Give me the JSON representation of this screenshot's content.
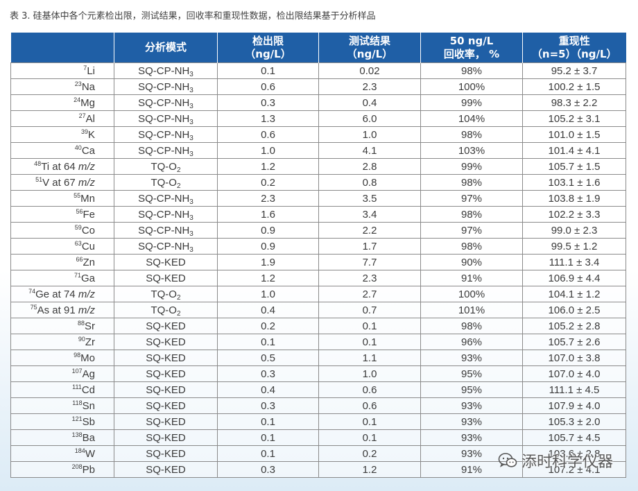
{
  "caption": "表 3. 硅基体中各个元素检出限，测试结果，回收率和重现性数据，检出限结果基于分析样品",
  "headers": {
    "element": "",
    "mode": "分析模式",
    "dl_line1": "检出限",
    "dl_line2": "（ng/L）",
    "result_line1": "测试结果",
    "result_line2": "（ng/L）",
    "recovery_line1": "50 ng/L",
    "recovery_line2": "回收率， %",
    "repro_line1": "重现性",
    "repro_line2": "（n=5）（ng/L）"
  },
  "rows": [
    {
      "mass": "7",
      "symbol": "Li",
      "suffix": "",
      "mode_base": "SQ-CP-NH",
      "mode_sub": "3",
      "dl": "0.1",
      "result": "0.02",
      "recovery": "98%",
      "repro": "95.2 ± 3.7"
    },
    {
      "mass": "23",
      "symbol": "Na",
      "suffix": "",
      "mode_base": "SQ-CP-NH",
      "mode_sub": "3",
      "dl": "0.6",
      "result": "2.3",
      "recovery": "100%",
      "repro": "100.2 ± 1.5"
    },
    {
      "mass": "24",
      "symbol": "Mg",
      "suffix": "",
      "mode_base": "SQ-CP-NH",
      "mode_sub": "3",
      "dl": "0.3",
      "result": "0.4",
      "recovery": "99%",
      "repro": "98.3 ± 2.2"
    },
    {
      "mass": "27",
      "symbol": "Al",
      "suffix": "",
      "mode_base": "SQ-CP-NH",
      "mode_sub": "3",
      "dl": "1.3",
      "result": "6.0",
      "recovery": "104%",
      "repro": "105.2 ± 3.1"
    },
    {
      "mass": "39",
      "symbol": "K",
      "suffix": "",
      "mode_base": "SQ-CP-NH",
      "mode_sub": "3",
      "dl": "0.6",
      "result": "1.0",
      "recovery": "98%",
      "repro": "101.0 ± 1.5"
    },
    {
      "mass": "40",
      "symbol": "Ca",
      "suffix": "",
      "mode_base": "SQ-CP-NH",
      "mode_sub": "3",
      "dl": "1.0",
      "result": "4.1",
      "recovery": "103%",
      "repro": "101.4 ± 4.1"
    },
    {
      "mass": "48",
      "symbol": "Ti at 64 ",
      "suffix": "m/z",
      "mode_base": "TQ-O",
      "mode_sub": "2",
      "dl": "1.2",
      "result": "2.8",
      "recovery": "99%",
      "repro": "105.7 ± 1.5"
    },
    {
      "mass": "51",
      "symbol": "V at 67 ",
      "suffix": "m/z",
      "mode_base": "TQ-O",
      "mode_sub": "2",
      "dl": "0.2",
      "result": "0.8",
      "recovery": "98%",
      "repro": "103.1 ± 1.6"
    },
    {
      "mass": "55",
      "symbol": "Mn",
      "suffix": "",
      "mode_base": "SQ-CP-NH",
      "mode_sub": "3",
      "dl": "2.3",
      "result": "3.5",
      "recovery": "97%",
      "repro": "103.8 ± 1.9"
    },
    {
      "mass": "56",
      "symbol": "Fe",
      "suffix": "",
      "mode_base": "SQ-CP-NH",
      "mode_sub": "3",
      "dl": "1.6",
      "result": "3.4",
      "recovery": "98%",
      "repro": "102.2 ± 3.3"
    },
    {
      "mass": "59",
      "symbol": "Co",
      "suffix": "",
      "mode_base": "SQ-CP-NH",
      "mode_sub": "3",
      "dl": "0.9",
      "result": "2.2",
      "recovery": "97%",
      "repro": "99.0 ± 2.3"
    },
    {
      "mass": "63",
      "symbol": "Cu",
      "suffix": "",
      "mode_base": "SQ-CP-NH",
      "mode_sub": "3",
      "dl": "0.9",
      "result": "1.7",
      "recovery": "98%",
      "repro": "99.5 ± 1.2"
    },
    {
      "mass": "66",
      "symbol": "Zn",
      "suffix": "",
      "mode_base": "SQ-KED",
      "mode_sub": "",
      "dl": "1.9",
      "result": "7.7",
      "recovery": "90%",
      "repro": "111.1 ± 3.4"
    },
    {
      "mass": "71",
      "symbol": "Ga",
      "suffix": "",
      "mode_base": "SQ-KED",
      "mode_sub": "",
      "dl": "1.2",
      "result": "2.3",
      "recovery": "91%",
      "repro": "106.9 ± 4.4"
    },
    {
      "mass": "74",
      "symbol": "Ge at 74 ",
      "suffix": "m/z",
      "mode_base": "TQ-O",
      "mode_sub": "2",
      "dl": "1.0",
      "result": "2.7",
      "recovery": "100%",
      "repro": "104.1 ± 1.2"
    },
    {
      "mass": "75",
      "symbol": "As at 91 ",
      "suffix": "m/z",
      "mode_base": "TQ-O",
      "mode_sub": "2",
      "dl": "0.4",
      "result": "0.7",
      "recovery": "101%",
      "repro": "106.0 ± 2.5"
    },
    {
      "mass": "88",
      "symbol": "Sr",
      "suffix": "",
      "mode_base": "SQ-KED",
      "mode_sub": "",
      "dl": "0.2",
      "result": "0.1",
      "recovery": "98%",
      "repro": "105.2 ± 2.8"
    },
    {
      "mass": "90",
      "symbol": "Zr",
      "suffix": "",
      "mode_base": "SQ-KED",
      "mode_sub": "",
      "dl": "0.1",
      "result": "0.1",
      "recovery": "96%",
      "repro": "105.7 ± 2.6"
    },
    {
      "mass": "98",
      "symbol": "Mo",
      "suffix": "",
      "mode_base": "SQ-KED",
      "mode_sub": "",
      "dl": "0.5",
      "result": "1.1",
      "recovery": "93%",
      "repro": "107.0 ± 3.8"
    },
    {
      "mass": "107",
      "symbol": "Ag",
      "suffix": "",
      "mode_base": "SQ-KED",
      "mode_sub": "",
      "dl": "0.3",
      "result": "1.0",
      "recovery": "95%",
      "repro": "107.0 ± 4.0"
    },
    {
      "mass": "111",
      "symbol": "Cd",
      "suffix": "",
      "mode_base": "SQ-KED",
      "mode_sub": "",
      "dl": "0.4",
      "result": "0.6",
      "recovery": "95%",
      "repro": "111.1 ± 4.5"
    },
    {
      "mass": "118",
      "symbol": "Sn",
      "suffix": "",
      "mode_base": "SQ-KED",
      "mode_sub": "",
      "dl": "0.3",
      "result": "0.6",
      "recovery": "93%",
      "repro": "107.9 ± 4.0"
    },
    {
      "mass": "121",
      "symbol": "Sb",
      "suffix": "",
      "mode_base": "SQ-KED",
      "mode_sub": "",
      "dl": "0.1",
      "result": "0.1",
      "recovery": "93%",
      "repro": "105.3 ± 2.0"
    },
    {
      "mass": "138",
      "symbol": "Ba",
      "suffix": "",
      "mode_base": "SQ-KED",
      "mode_sub": "",
      "dl": "0.1",
      "result": "0.1",
      "recovery": "93%",
      "repro": "105.7 ± 4.5"
    },
    {
      "mass": "184",
      "symbol": "W",
      "suffix": "",
      "mode_base": "SQ-KED",
      "mode_sub": "",
      "dl": "0.1",
      "result": "0.2",
      "recovery": "93%",
      "repro": "103.6 ± 2.8"
    },
    {
      "mass": "208",
      "symbol": "Pb",
      "suffix": "",
      "mode_base": "SQ-KED",
      "mode_sub": "",
      "dl": "0.3",
      "result": "1.2",
      "recovery": "91%",
      "repro": "107.2 ± 4.1"
    }
  ],
  "watermark": {
    "icon": "wechat-icon",
    "text": "添时科学仪器"
  }
}
